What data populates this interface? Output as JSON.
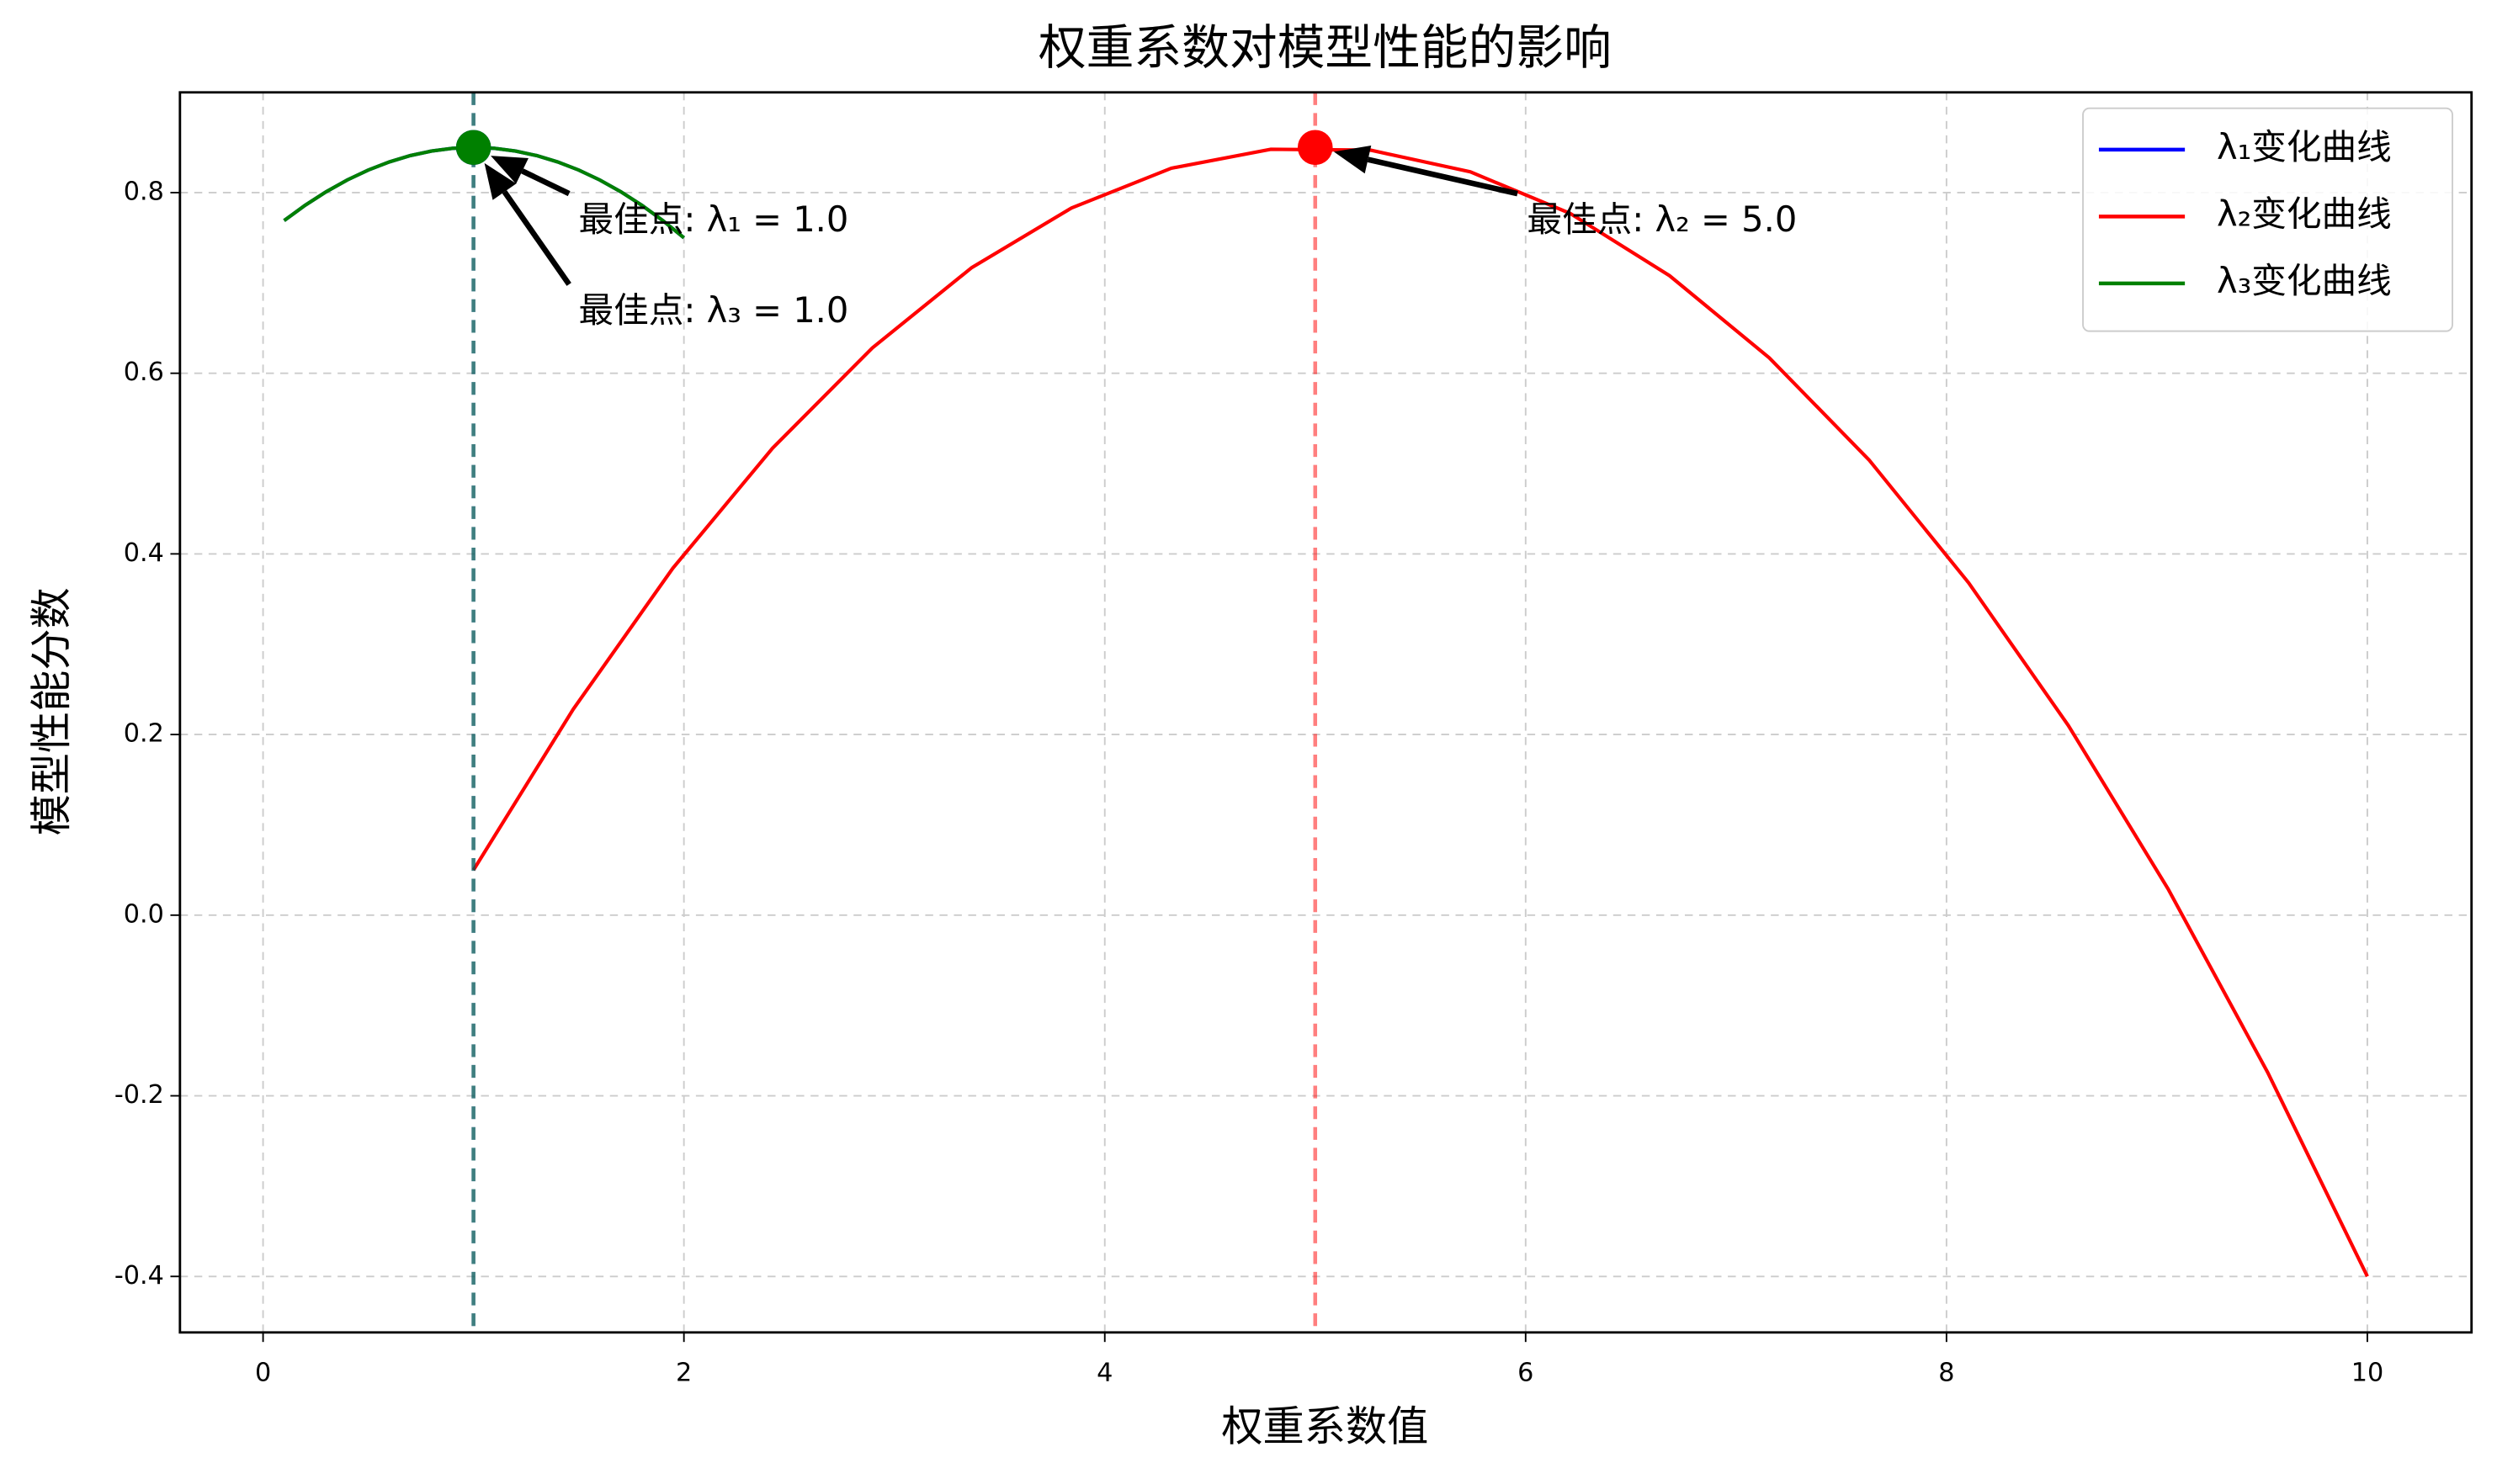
{
  "chart_data": {
    "type": "line",
    "title": "权重系数对模型性能的影响",
    "x_label": "权重系数值",
    "y_label": "模型性能分数",
    "xlim": [
      -0.395,
      10.495
    ],
    "ylim": [
      -0.462,
      0.911
    ],
    "xticks": [
      0,
      2,
      4,
      6,
      8,
      10
    ],
    "yticks": [
      -0.4,
      -0.2,
      {
        "value": 0,
        "label": "0.0"
      },
      0.2,
      0.4,
      0.6,
      0.8
    ],
    "grid": true,
    "legend": "upper right",
    "series": [
      {
        "name": "λ₁变化曲线",
        "color": "#0000ff",
        "x": [
          0.1,
          0.2,
          0.3,
          0.4,
          0.5,
          0.6,
          0.7,
          0.8,
          0.9,
          1.0,
          1.1,
          1.2,
          1.3,
          1.4,
          1.5,
          1.6,
          1.7,
          1.8,
          1.9,
          2.0
        ],
        "values": [
          0.769,
          0.786,
          0.801,
          0.814,
          0.825,
          0.834,
          0.841,
          0.846,
          0.849,
          0.85,
          0.849,
          0.846,
          0.841,
          0.834,
          0.825,
          0.814,
          0.801,
          0.786,
          0.769,
          0.75
        ]
      },
      {
        "name": "λ₂变化曲线",
        "color": "#ff0000",
        "x": [
          1,
          1.474,
          1.947,
          2.421,
          2.895,
          3.368,
          3.842,
          4.316,
          4.789,
          5.263,
          5.737,
          6.211,
          6.684,
          7.158,
          7.632,
          8.105,
          8.579,
          9.053,
          9.526,
          10
        ],
        "values": [
          0.05,
          0.228,
          0.384,
          0.517,
          0.628,
          0.717,
          0.783,
          0.827,
          0.848,
          0.847,
          0.823,
          0.777,
          0.708,
          0.617,
          0.504,
          0.368,
          0.21,
          0.029,
          -0.174,
          -0.4
        ]
      },
      {
        "name": "λ₃变化曲线",
        "color": "#008000",
        "x": [
          0.1,
          0.2,
          0.3,
          0.4,
          0.5,
          0.6,
          0.7,
          0.8,
          0.9,
          1.0,
          1.1,
          1.2,
          1.3,
          1.4,
          1.5,
          1.6,
          1.7,
          1.8,
          1.9,
          2.0
        ],
        "values": [
          0.769,
          0.786,
          0.801,
          0.814,
          0.825,
          0.834,
          0.841,
          0.846,
          0.849,
          0.85,
          0.849,
          0.846,
          0.841,
          0.834,
          0.825,
          0.814,
          0.801,
          0.786,
          0.769,
          0.75
        ]
      }
    ],
    "annotations": [
      {
        "text": "最佳点: λ₁ = 1.0",
        "x": 1.0,
        "y": 0.85,
        "color": "#0000ff"
      },
      {
        "text": "最佳点: λ₂ = 5.0",
        "x": 5.0,
        "y": 0.85,
        "color": "#ff0000"
      },
      {
        "text": "最佳点: λ₃ = 1.0",
        "x": 1.0,
        "y": 0.85,
        "color": "#008000"
      }
    ]
  }
}
